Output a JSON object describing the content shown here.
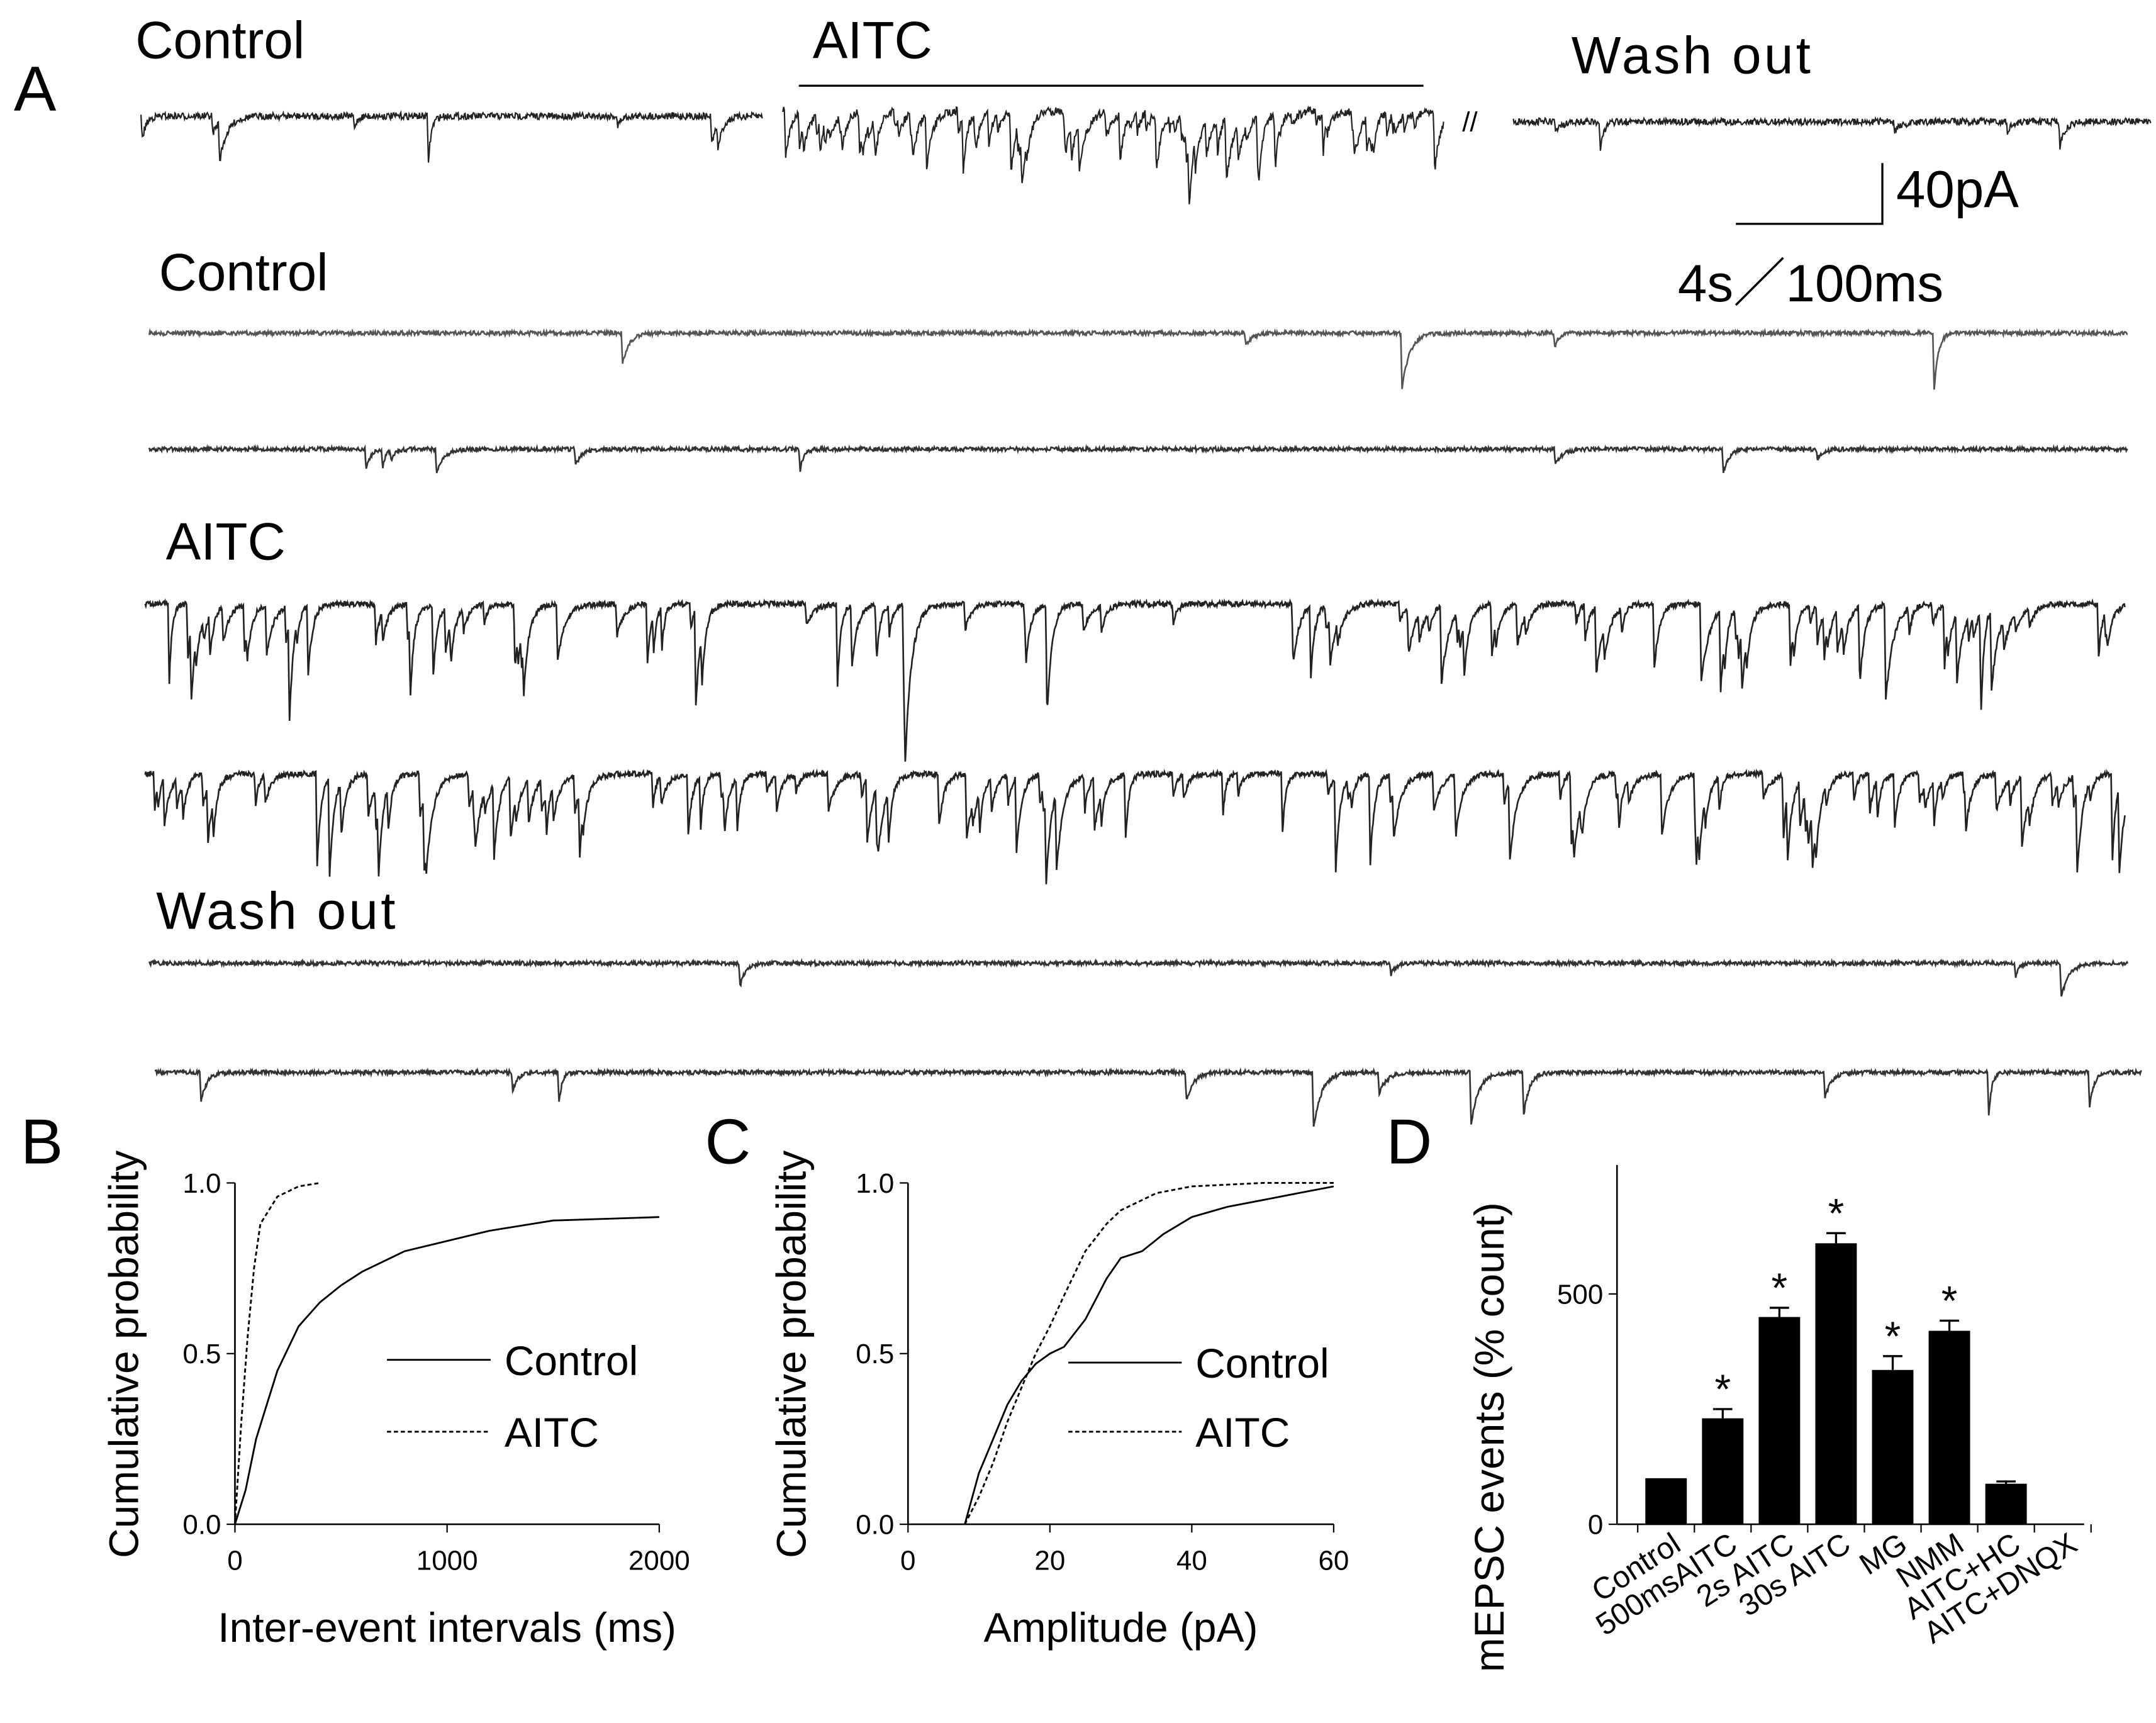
{
  "panel_a": {
    "panel": "A",
    "top_labels": [
      "Control",
      "AITC",
      "Wash out"
    ],
    "break_mark": "//",
    "scale_y": "40pA",
    "scale_x": "4s／100ms",
    "row_labels": [
      "Control",
      "AITC",
      "Wash out"
    ]
  },
  "chart_data": [
    {
      "type": "line",
      "panel": "B",
      "xlabel": "Inter-event intervals (ms)",
      "ylabel": "Cumulative probability",
      "xlim": [
        0,
        2000
      ],
      "ylim": [
        0,
        1
      ],
      "xticks": [
        0,
        1000,
        2000
      ],
      "yticks": [
        {
          "value": 0,
          "label": "0.0"
        },
        {
          "value": 0.5,
          "label": "0.5"
        },
        {
          "value": 1,
          "label": "1.0"
        }
      ],
      "series": [
        {
          "name": "Control",
          "color": "#000000",
          "dash": false,
          "x": [
            0,
            50,
            100,
            150,
            200,
            300,
            400,
            500,
            600,
            800,
            1000,
            1200,
            1500,
            2000
          ],
          "y": [
            0,
            0.1,
            0.25,
            0.35,
            0.45,
            0.58,
            0.65,
            0.7,
            0.74,
            0.8,
            0.83,
            0.86,
            0.89,
            0.9
          ]
        },
        {
          "name": "AITC",
          "color": "#000000",
          "dash": true,
          "x": [
            0,
            30,
            60,
            90,
            120,
            200,
            300,
            400
          ],
          "y": [
            0,
            0.3,
            0.55,
            0.75,
            0.88,
            0.96,
            0.99,
            1.0
          ]
        }
      ]
    },
    {
      "type": "line",
      "panel": "C",
      "xlabel": "Amplitude (pA)",
      "ylabel": "Cumulative probability",
      "xlim": [
        0,
        60
      ],
      "ylim": [
        0,
        1
      ],
      "xticks": [
        0,
        20,
        40,
        60
      ],
      "yticks": [
        {
          "value": 0,
          "label": "0.0"
        },
        {
          "value": 0.5,
          "label": "0.5"
        },
        {
          "value": 1,
          "label": "1.0"
        }
      ],
      "series": [
        {
          "name": "Control",
          "color": "#000000",
          "dash": false,
          "x": [
            8,
            10,
            12,
            14,
            16,
            18,
            20,
            22,
            25,
            28,
            30,
            33,
            36,
            40,
            45,
            50,
            55,
            60
          ],
          "y": [
            0,
            0.15,
            0.25,
            0.35,
            0.42,
            0.47,
            0.5,
            0.52,
            0.6,
            0.72,
            0.78,
            0.8,
            0.85,
            0.9,
            0.93,
            0.95,
            0.97,
            0.99
          ]
        },
        {
          "name": "AITC",
          "color": "#000000",
          "dash": true,
          "x": [
            8,
            10,
            12,
            14,
            16,
            18,
            20,
            22,
            25,
            28,
            30,
            35,
            40,
            50,
            60
          ],
          "y": [
            0,
            0.08,
            0.18,
            0.3,
            0.4,
            0.5,
            0.58,
            0.67,
            0.8,
            0.88,
            0.92,
            0.97,
            0.99,
            1.0,
            1.0
          ]
        }
      ]
    },
    {
      "type": "bar",
      "panel": "D",
      "ylabel": "mEPSC events  (% count)",
      "categories": [
        "Control",
        "500msAITC",
        "2s AITC",
        "30s AITC",
        "MG",
        "NMM",
        "AITC+HC",
        "AITC+DNQX"
      ],
      "values": [
        100,
        230,
        450,
        610,
        335,
        420,
        88,
        null
      ],
      "errors": [
        0,
        20,
        20,
        22,
        30,
        22,
        5,
        null
      ],
      "significance": [
        null,
        "*",
        "*",
        "*",
        "*",
        "*",
        null,
        null
      ],
      "color": "#000000",
      "ylim": [
        0,
        780
      ],
      "yticks": [
        0,
        500
      ]
    }
  ]
}
